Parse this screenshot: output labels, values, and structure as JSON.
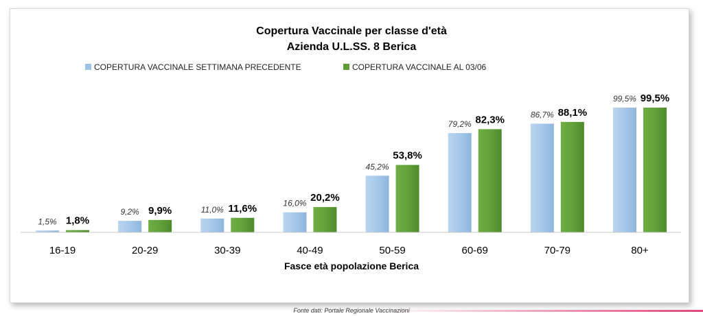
{
  "footer": "Fonte dati: Portale Regionale Vaccinazioni",
  "colors": {
    "series_previous": "#9dc3e6",
    "series_current": "#5e9b35",
    "accent": "#e0457b"
  },
  "chart_data": {
    "type": "bar",
    "title": "Copertura Vaccinale per classe d'età",
    "subtitle": "Azienda U.L.SS. 8 Berica",
    "xlabel": "Fasce età popolazione Berica",
    "ylabel": "",
    "ylim": [
      0,
      100
    ],
    "grid": false,
    "legend_position": "top",
    "categories": [
      "16-19",
      "20-29",
      "30-39",
      "40-49",
      "50-59",
      "60-69",
      "70-79",
      "80+"
    ],
    "series": [
      {
        "name": "COPERTURA VACCINALE SETTIMANA PRECEDENTE",
        "values": [
          1.5,
          9.2,
          11.0,
          16.0,
          45.2,
          79.2,
          86.7,
          99.5
        ],
        "labels": [
          "1,5%",
          "9,2%",
          "11,0%",
          "16,0%",
          "45,2%",
          "79,2%",
          "86,7%",
          "99,5%"
        ]
      },
      {
        "name": "COPERTURA VACCINALE AL 03/06",
        "values": [
          1.8,
          9.9,
          11.6,
          20.2,
          53.8,
          82.3,
          88.1,
          99.5
        ],
        "labels": [
          "1,8%",
          "9,9%",
          "11,6%",
          "20,2%",
          "53,8%",
          "82,3%",
          "88,1%",
          "99,5%"
        ]
      }
    ]
  }
}
